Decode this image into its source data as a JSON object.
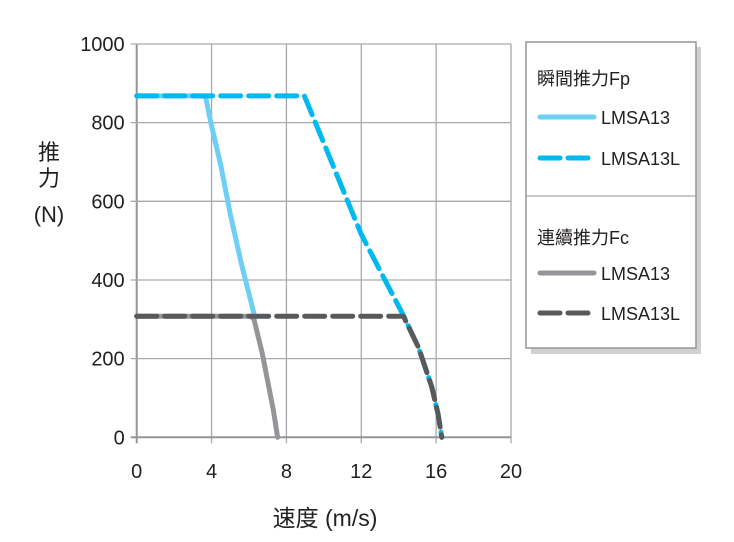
{
  "chart_data": {
    "type": "line",
    "xlabel": "速度 (m/s)",
    "ylabel_lines": [
      "推",
      "力",
      "(N)"
    ],
    "xlim": [
      0,
      20
    ],
    "ylim": [
      0,
      1000
    ],
    "x_ticks": [
      0,
      4,
      8,
      12,
      16,
      20
    ],
    "y_ticks": [
      0,
      200,
      400,
      600,
      800,
      1000
    ],
    "grid": true,
    "legend_position": "right",
    "legend_groups": [
      {
        "title": "瞬間推力Fp",
        "items": [
          0,
          1
        ]
      },
      {
        "title": "連續推力Fc",
        "items": [
          2,
          3
        ]
      }
    ],
    "series": [
      {
        "name": "LMSA13",
        "group": "瞬間推力Fp",
        "style": "solid",
        "color": "#6dcff6",
        "x": [
          0,
          3.67,
          3.95,
          4.5,
          5.0,
          5.6,
          6.27
        ],
        "y": [
          868,
          868,
          803,
          690,
          567,
          440,
          314
        ]
      },
      {
        "name": "LMSA13L",
        "group": "瞬間推力Fp",
        "style": "dashed",
        "color": "#00b9f0",
        "x": [
          0,
          8.96,
          12.0,
          14.25,
          15.05,
          15.77,
          16.1,
          16.3
        ],
        "y": [
          868,
          868,
          516,
          310,
          229,
          128,
          60,
          0
        ]
      },
      {
        "name": "LMSA13",
        "group": "連續推力Fc",
        "style": "solid",
        "color": "#939598",
        "x": [
          0,
          6.1,
          6.27,
          6.7,
          6.99,
          7.3,
          7.53
        ],
        "y": [
          308,
          308,
          300,
          215,
          145,
          70,
          0
        ]
      },
      {
        "name": "LMSA13L",
        "group": "連續推力Fc",
        "style": "dashed",
        "color": "#58595b",
        "x": [
          0,
          14.25,
          15.05,
          15.77,
          16.1,
          16.3
        ],
        "y": [
          308,
          308,
          229,
          128,
          60,
          0
        ]
      }
    ]
  }
}
